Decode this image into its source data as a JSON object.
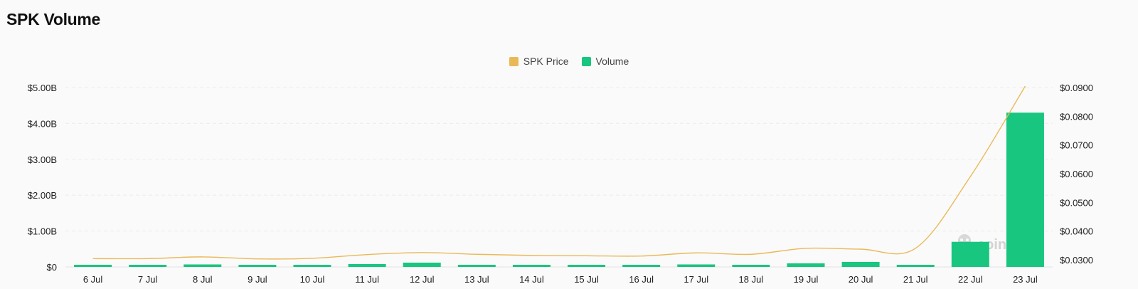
{
  "header": {
    "title": "SPK Volume"
  },
  "legend": [
    {
      "label": "SPK Price",
      "color": "#eab957"
    },
    {
      "label": "Volume",
      "color": "#18c67f"
    }
  ],
  "watermark": {
    "text": "coinglass"
  },
  "chart_data": {
    "type": "bar",
    "title": "SPK Volume",
    "categories": [
      "6 Jul",
      "7 Jul",
      "8 Jul",
      "9 Jul",
      "10 Jul",
      "11 Jul",
      "12 Jul",
      "13 Jul",
      "14 Jul",
      "15 Jul",
      "16 Jul",
      "17 Jul",
      "18 Jul",
      "19 Jul",
      "20 Jul",
      "21 Jul",
      "22 Jul",
      "23 Jul"
    ],
    "series": [
      {
        "name": "Volume",
        "type": "bar",
        "axis": "left",
        "color": "#18c67f",
        "values": [
          0.06,
          0.05,
          0.07,
          0.05,
          0.05,
          0.08,
          0.12,
          0.06,
          0.04,
          0.04,
          0.05,
          0.07,
          0.06,
          0.1,
          0.14,
          0.05,
          0.7,
          4.3
        ]
      },
      {
        "name": "SPK Price",
        "type": "line",
        "axis": "right",
        "color": "#eab957",
        "values": [
          0.0304,
          0.0304,
          0.031,
          0.0303,
          0.0305,
          0.0318,
          0.0325,
          0.0319,
          0.0315,
          0.0314,
          0.0313,
          0.0324,
          0.0319,
          0.034,
          0.0337,
          0.034,
          0.059,
          0.0905
        ]
      }
    ],
    "y_left": {
      "min": 0,
      "max": 5,
      "ticks": [
        "$0",
        "$1.00B",
        "$2.00B",
        "$3.00B",
        "$4.00B",
        "$5.00B"
      ],
      "tick_values": [
        0,
        1,
        2,
        3,
        4,
        5
      ]
    },
    "y_right": {
      "min": 0.0275,
      "max": 0.09,
      "ticks": [
        "$0.0300",
        "$0.0400",
        "$0.0500",
        "$0.0600",
        "$0.0700",
        "$0.0800",
        "$0.0900"
      ],
      "tick_values": [
        0.03,
        0.04,
        0.05,
        0.06,
        0.07,
        0.08,
        0.09
      ]
    },
    "grid": true,
    "legend_position": "top-center"
  }
}
